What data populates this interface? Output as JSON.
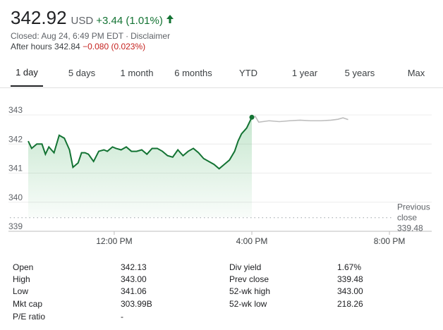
{
  "quote": {
    "price": "342.92",
    "currency": "USD",
    "change": "+3.44 (1.01%)",
    "closed_text": "Closed: Aug 24, 6:49 PM EDT",
    "disclaimer": "Disclaimer",
    "after_hours_label": "After hours 342.84",
    "after_hours_change": "−0.080 (0.023%)",
    "positive_color": "#137333",
    "negative_color": "#c5221f"
  },
  "tabs": [
    {
      "label": "1 day",
      "active": true
    },
    {
      "label": "5 days",
      "active": false
    },
    {
      "label": "1 month",
      "active": false
    },
    {
      "label": "6 months",
      "active": false
    },
    {
      "label": "YTD",
      "active": false
    },
    {
      "label": "1 year",
      "active": false
    },
    {
      "label": "5 years",
      "active": false
    },
    {
      "label": "Max",
      "active": false
    }
  ],
  "chart_data": {
    "type": "line",
    "y_ticks": [
      "343",
      "342",
      "341",
      "340",
      "339"
    ],
    "ylim": [
      339,
      343.5
    ],
    "x_ticks": [
      "12:00 PM",
      "4:00 PM",
      "8:00 PM"
    ],
    "previous_close_label": [
      "Previous",
      "close",
      "339.48"
    ],
    "previous_close": 339.48,
    "grid": true,
    "series": [
      {
        "session": "regular",
        "color": "#137333",
        "fill": true,
        "x": [
          9.5,
          9.6,
          9.75,
          9.9,
          10.0,
          10.1,
          10.25,
          10.4,
          10.55,
          10.7,
          10.8,
          10.95,
          11.05,
          11.15,
          11.25,
          11.4,
          11.55,
          11.7,
          11.8,
          11.95,
          12.05,
          12.2,
          12.35,
          12.5,
          12.65,
          12.8,
          12.95,
          13.1,
          13.25,
          13.4,
          13.55,
          13.7,
          13.85,
          14.0,
          14.15,
          14.3,
          14.45,
          14.6,
          14.75,
          14.9,
          15.05,
          15.2,
          15.35,
          15.5,
          15.6,
          15.7,
          15.85,
          16.0
        ],
        "y": [
          342.1,
          341.85,
          342.0,
          342.0,
          341.65,
          341.9,
          341.7,
          342.3,
          342.2,
          341.8,
          341.2,
          341.35,
          341.7,
          341.7,
          341.65,
          341.4,
          341.75,
          341.8,
          341.75,
          341.9,
          341.85,
          341.8,
          341.9,
          341.75,
          341.75,
          341.8,
          341.65,
          341.85,
          341.85,
          341.75,
          341.6,
          341.55,
          341.8,
          341.6,
          341.75,
          341.85,
          341.7,
          341.5,
          341.4,
          341.3,
          341.15,
          341.3,
          341.45,
          341.75,
          342.1,
          342.35,
          342.55,
          342.92
        ]
      },
      {
        "session": "after-hours",
        "color": "#bdbdbd",
        "fill": false,
        "x": [
          16.0,
          16.1,
          16.2,
          16.5,
          16.8,
          17.1,
          17.4,
          17.7,
          18.0,
          18.3,
          18.5,
          18.65,
          18.8
        ],
        "y": [
          342.92,
          342.95,
          342.75,
          342.8,
          342.77,
          342.8,
          342.82,
          342.8,
          342.8,
          342.82,
          342.85,
          342.9,
          342.84
        ]
      }
    ]
  },
  "stats": {
    "left": [
      {
        "label": "Open",
        "value": "342.13"
      },
      {
        "label": "High",
        "value": "343.00"
      },
      {
        "label": "Low",
        "value": "341.06"
      },
      {
        "label": "Mkt cap",
        "value": "303.99B"
      },
      {
        "label": "P/E ratio",
        "value": "-"
      }
    ],
    "right": [
      {
        "label": "Div yield",
        "value": "1.67%"
      },
      {
        "label": "Prev close",
        "value": "339.48"
      },
      {
        "label": "52-wk high",
        "value": "343.00"
      },
      {
        "label": "52-wk low",
        "value": "218.26"
      }
    ]
  }
}
